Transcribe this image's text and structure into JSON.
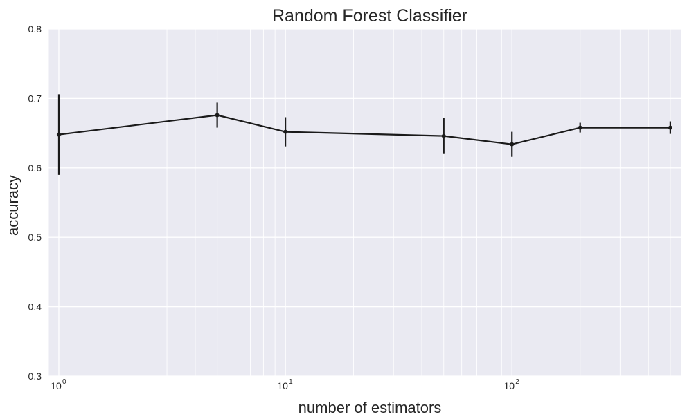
{
  "chart_data": {
    "type": "line",
    "title": "Random Forest Classifier",
    "xlabel": "number of estimators",
    "ylabel": "accuracy",
    "x_scale": "log",
    "xlim": [
      0.9,
      560
    ],
    "ylim": [
      0.3,
      0.8
    ],
    "grid": true,
    "x_ticks": [
      {
        "base": "10",
        "exp": "0",
        "value": 1
      },
      {
        "base": "10",
        "exp": "1",
        "value": 10
      },
      {
        "base": "10",
        "exp": "2",
        "value": 100
      }
    ],
    "y_ticks": [
      "0.3",
      "0.4",
      "0.5",
      "0.6",
      "0.7",
      "0.8"
    ],
    "series": [
      {
        "x": [
          1,
          5,
          10,
          50,
          100,
          200,
          500
        ],
        "y": [
          0.648,
          0.676,
          0.652,
          0.646,
          0.634,
          0.658,
          0.658
        ],
        "yerr": [
          0.058,
          0.018,
          0.021,
          0.026,
          0.018,
          0.007,
          0.009
        ]
      }
    ],
    "colors": {
      "background": "#eaeaf2",
      "grid": "#ffffff",
      "line": "#1a1a1a"
    }
  }
}
